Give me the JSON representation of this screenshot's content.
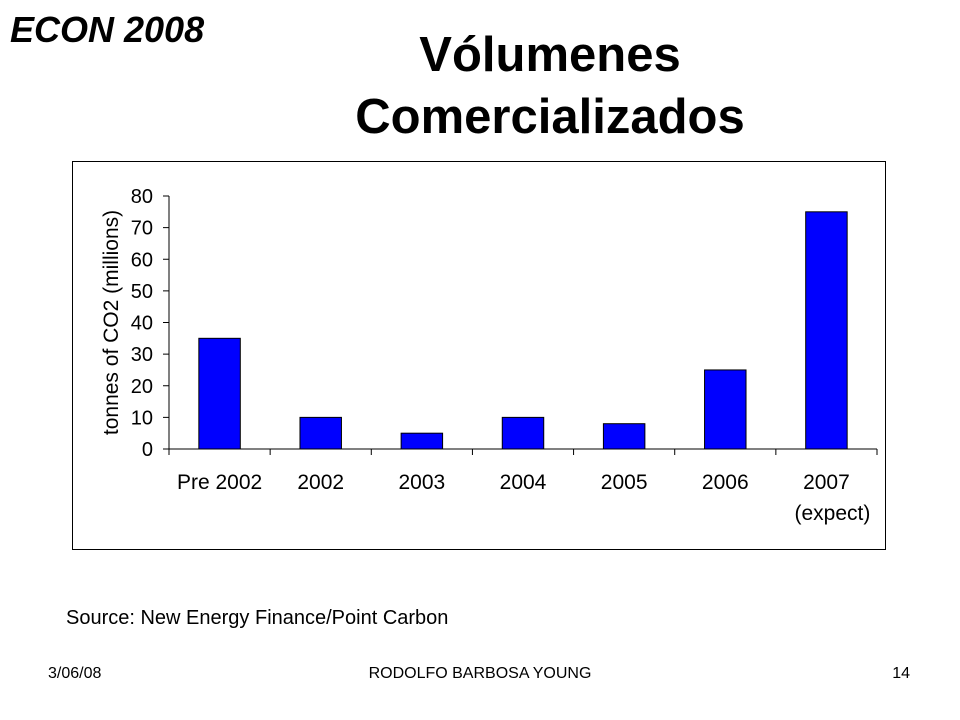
{
  "header": {
    "course": "ECON 2008",
    "title_line1": "Vólumenes",
    "title_line2": "Comercializados"
  },
  "chart_data": {
    "type": "bar",
    "ylabel": "tonnes of CO2 (millions)",
    "categories": [
      "Pre 2002",
      "2002",
      "2003",
      "2004",
      "2005",
      "2006",
      "2007"
    ],
    "category_sublabels": [
      "",
      "",
      "",
      "",
      "",
      "",
      "(expect)"
    ],
    "values": [
      35,
      10,
      5,
      10,
      8,
      25,
      75
    ],
    "ylim": [
      0,
      80
    ],
    "yticks": [
      0,
      10,
      20,
      30,
      40,
      50,
      60,
      70,
      80
    ],
    "grid": false,
    "bar_color": "#0000FF",
    "bar_outline_color": "#000000"
  },
  "source": "Source: New Energy Finance/Point Carbon",
  "footer": {
    "date": "3/06/08",
    "author": "RODOLFO BARBOSA YOUNG",
    "page": "14"
  }
}
